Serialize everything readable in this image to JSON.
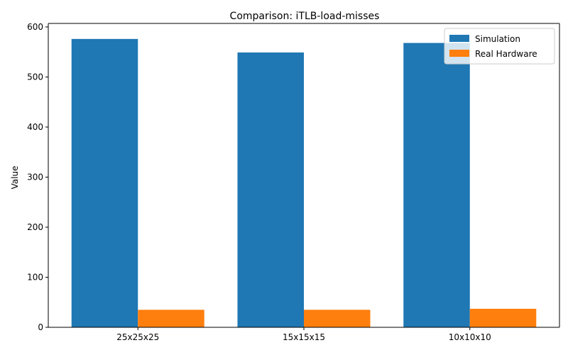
{
  "chart_data": {
    "type": "bar",
    "title": "Comparison: iTLB-load-misses",
    "xlabel": "",
    "ylabel": "Value",
    "categories": [
      "25x25x25",
      "15x15x15",
      "10x10x10"
    ],
    "series": [
      {
        "name": "Simulation",
        "color": "#1f77b4",
        "values": [
          576,
          549,
          568
        ]
      },
      {
        "name": "Real Hardware",
        "color": "#ff7f0e",
        "values": [
          35,
          35,
          37
        ]
      }
    ],
    "ylim": [
      0,
      607
    ],
    "yticks": [
      0,
      100,
      200,
      300,
      400,
      500,
      600
    ],
    "grid": false,
    "legend_position": "top-right"
  }
}
